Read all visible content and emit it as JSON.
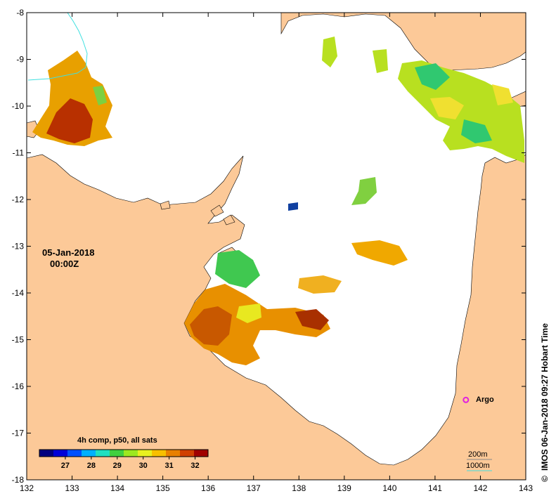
{
  "map": {
    "lon_ticks": [
      "132",
      "133",
      "134",
      "135",
      "136",
      "137",
      "138",
      "139",
      "140",
      "141",
      "142",
      "143"
    ],
    "lat_ticks": [
      "-8",
      "-9",
      "-10",
      "-11",
      "-12",
      "-13",
      "-14",
      "-15",
      "-16",
      "-17",
      "-18"
    ],
    "lon_range": [
      132,
      143
    ],
    "lat_range": [
      -18,
      -8
    ],
    "date_label": "05-Jan-2018",
    "time_label": "00:00Z",
    "float_label": "Argo",
    "float_position": {
      "lon": 141.68,
      "lat": -16.29
    },
    "legend_title": "4h comp, p50, all sats",
    "colorbar_ticks": [
      "27",
      "28",
      "29",
      "30",
      "31",
      "32"
    ],
    "colorbar_range": [
      26.0,
      32.5
    ],
    "contour_200m": "200m",
    "contour_1000m": "1000m",
    "credit": "IMOS 06-Jan-2018 09:27 Hobart Time",
    "copyright_symbol": "©",
    "colors": {
      "land": "#fcc998",
      "ocean": "#ffffff",
      "float_marker": "#e020e0",
      "contour_1000m": "#40e0e0",
      "colorbar": [
        "#00007f",
        "#0000d8",
        "#0050ff",
        "#00b0ff",
        "#20e0c0",
        "#40d040",
        "#9ce820",
        "#e8f020",
        "#f8c000",
        "#e88000",
        "#d04000",
        "#a00000"
      ]
    }
  }
}
